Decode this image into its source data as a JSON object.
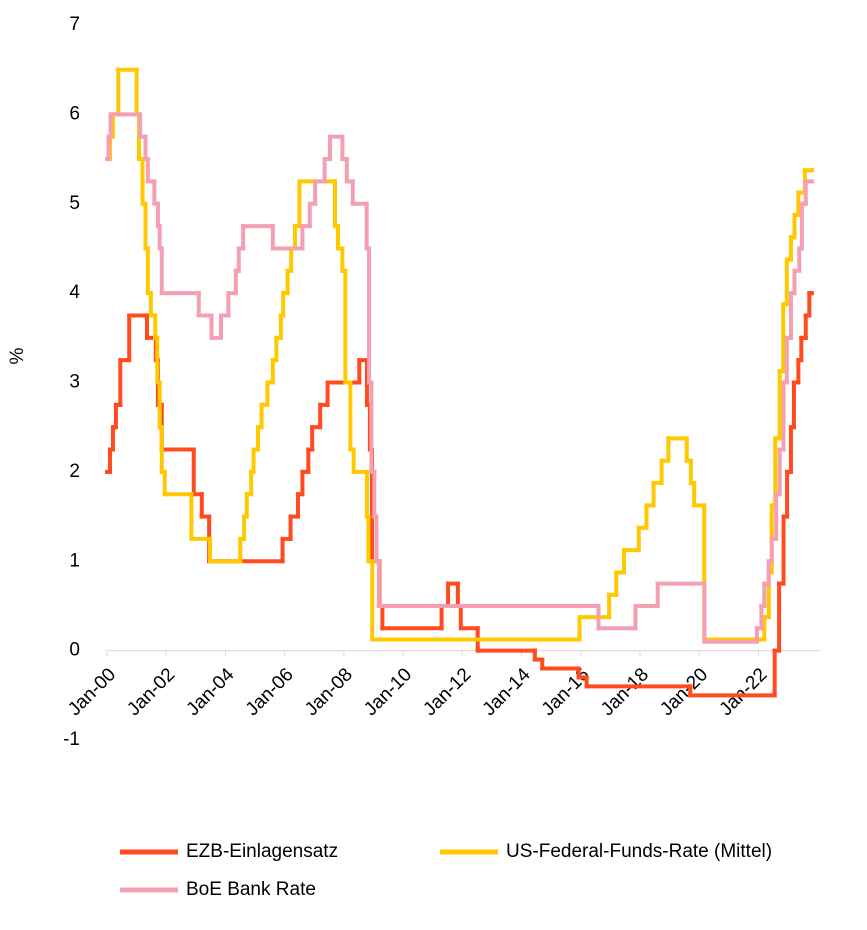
{
  "chart_data": {
    "type": "step-line",
    "ylabel": "%",
    "xlim": [
      2000,
      2024
    ],
    "xticks": [
      {
        "value": 2000,
        "label": "Jan-00"
      },
      {
        "value": 2002,
        "label": "Jan-02"
      },
      {
        "value": 2004,
        "label": "Jan-04"
      },
      {
        "value": 2006,
        "label": "Jan-06"
      },
      {
        "value": 2008,
        "label": "Jan-08"
      },
      {
        "value": 2010,
        "label": "Jan-10"
      },
      {
        "value": 2012,
        "label": "Jan-12"
      },
      {
        "value": 2014,
        "label": "Jan-14"
      },
      {
        "value": 2016,
        "label": "Jan-16"
      },
      {
        "value": 2018,
        "label": "Jan-18"
      },
      {
        "value": 2020,
        "label": "Jan-20"
      },
      {
        "value": 2022,
        "label": "Jan-22"
      }
    ],
    "ylim": [
      -1,
      7
    ],
    "yticks": [
      -1,
      0,
      1,
      2,
      3,
      4,
      5,
      6,
      7
    ],
    "grid": false,
    "series": [
      {
        "name": "EZB-Einlagensatz",
        "color": "#ff4b1f",
        "x": [
          2000.0,
          2000.1,
          2000.2,
          2000.3,
          2000.45,
          2000.75,
          2001.35,
          2001.65,
          2001.72,
          2001.85,
          2002.93,
          2003.2,
          2003.45,
          2005.93,
          2006.2,
          2006.45,
          2006.6,
          2006.8,
          2006.93,
          2007.2,
          2007.45,
          2008.52,
          2008.78,
          2008.88,
          2008.95,
          2009.2,
          2009.3,
          2011.3,
          2011.52,
          2011.85,
          2011.95,
          2012.52,
          2014.45,
          2014.7,
          2015.93,
          2016.2,
          2019.7,
          2022.55,
          2022.7,
          2022.85,
          2022.97,
          2023.1,
          2023.2,
          2023.35,
          2023.45,
          2023.6,
          2023.72,
          2023.8
        ],
        "values": [
          2.0,
          2.25,
          2.5,
          2.75,
          3.25,
          3.75,
          3.5,
          3.25,
          2.75,
          2.25,
          1.75,
          1.5,
          1.0,
          1.25,
          1.5,
          1.75,
          2.0,
          2.25,
          2.5,
          2.75,
          3.0,
          3.25,
          2.75,
          2.25,
          1.0,
          0.5,
          0.25,
          0.5,
          0.75,
          0.5,
          0.25,
          0,
          -0.1,
          -0.2,
          -0.3,
          -0.4,
          -0.5,
          0,
          0.75,
          1.5,
          2.0,
          2.5,
          3.0,
          3.25,
          3.5,
          3.75,
          4.0,
          4.0
        ]
      },
      {
        "name": "US-Federal-Funds-Rate (Mittel)",
        "color": "#ffc800",
        "x": [
          2000.0,
          2000.1,
          2000.2,
          2000.38,
          2001.0,
          2001.08,
          2001.2,
          2001.3,
          2001.38,
          2001.48,
          2001.63,
          2001.7,
          2001.78,
          2001.85,
          2001.95,
          2002.85,
          2003.48,
          2004.5,
          2004.63,
          2004.72,
          2004.87,
          2004.95,
          2005.1,
          2005.22,
          2005.42,
          2005.6,
          2005.72,
          2005.87,
          2005.95,
          2006.1,
          2006.22,
          2006.35,
          2006.5,
          2007.7,
          2007.8,
          2007.95,
          2008.05,
          2008.22,
          2008.33,
          2008.78,
          2008.83,
          2008.96,
          2015.96,
          2016.96,
          2017.2,
          2017.46,
          2017.96,
          2018.22,
          2018.46,
          2018.73,
          2018.96,
          2019.58,
          2019.72,
          2019.83,
          2020.17,
          2022.2,
          2022.35,
          2022.45,
          2022.57,
          2022.72,
          2022.84,
          2022.96,
          2023.1,
          2023.22,
          2023.35,
          2023.57,
          2023.8
        ],
        "values": [
          5.5,
          5.75,
          6.0,
          6.5,
          6.0,
          5.5,
          5.0,
          4.5,
          4.0,
          3.75,
          3.5,
          3.0,
          2.5,
          2.0,
          1.75,
          1.25,
          1.0,
          1.25,
          1.5,
          1.75,
          2.0,
          2.25,
          2.5,
          2.75,
          3.0,
          3.25,
          3.5,
          3.75,
          4.0,
          4.25,
          4.5,
          4.75,
          5.25,
          4.75,
          4.5,
          4.25,
          3.0,
          2.25,
          2.0,
          1.5,
          1.0,
          0.125,
          0.375,
          0.625,
          0.875,
          1.125,
          1.375,
          1.625,
          1.875,
          2.125,
          2.375,
          2.125,
          1.875,
          1.625,
          0.125,
          0.375,
          0.875,
          1.625,
          2.375,
          3.125,
          3.875,
          4.375,
          4.625,
          4.875,
          5.125,
          5.375,
          5.375
        ]
      },
      {
        "name": "BoE Bank Rate",
        "color": "#f4a0b2",
        "x": [
          2000.0,
          2000.05,
          2000.12,
          2001.12,
          2001.3,
          2001.38,
          2001.6,
          2001.72,
          2001.78,
          2001.85,
          2003.1,
          2003.53,
          2003.85,
          2004.1,
          2004.35,
          2004.45,
          2004.6,
          2005.6,
          2006.6,
          2006.85,
          2007.03,
          2007.35,
          2007.53,
          2007.95,
          2008.1,
          2008.3,
          2008.77,
          2008.85,
          2008.93,
          2009.03,
          2009.1,
          2009.18,
          2016.6,
          2017.85,
          2018.6,
          2020.18,
          2021.95,
          2022.1,
          2022.2,
          2022.35,
          2022.45,
          2022.6,
          2022.72,
          2022.85,
          2022.96,
          2023.1,
          2023.22,
          2023.38,
          2023.47,
          2023.6,
          2023.8
        ],
        "values": [
          5.5,
          5.75,
          6.0,
          5.75,
          5.5,
          5.25,
          5.0,
          4.75,
          4.5,
          4.0,
          3.75,
          3.5,
          3.75,
          4.0,
          4.25,
          4.5,
          4.75,
          4.5,
          4.75,
          5.0,
          5.25,
          5.5,
          5.75,
          5.5,
          5.25,
          5.0,
          4.5,
          3.0,
          2.0,
          1.5,
          1.0,
          0.5,
          0.25,
          0.5,
          0.75,
          0.1,
          0.25,
          0.5,
          0.75,
          1.0,
          1.25,
          1.75,
          2.25,
          3.0,
          3.5,
          4.0,
          4.25,
          4.5,
          5.0,
          5.25,
          5.25
        ]
      }
    ]
  }
}
